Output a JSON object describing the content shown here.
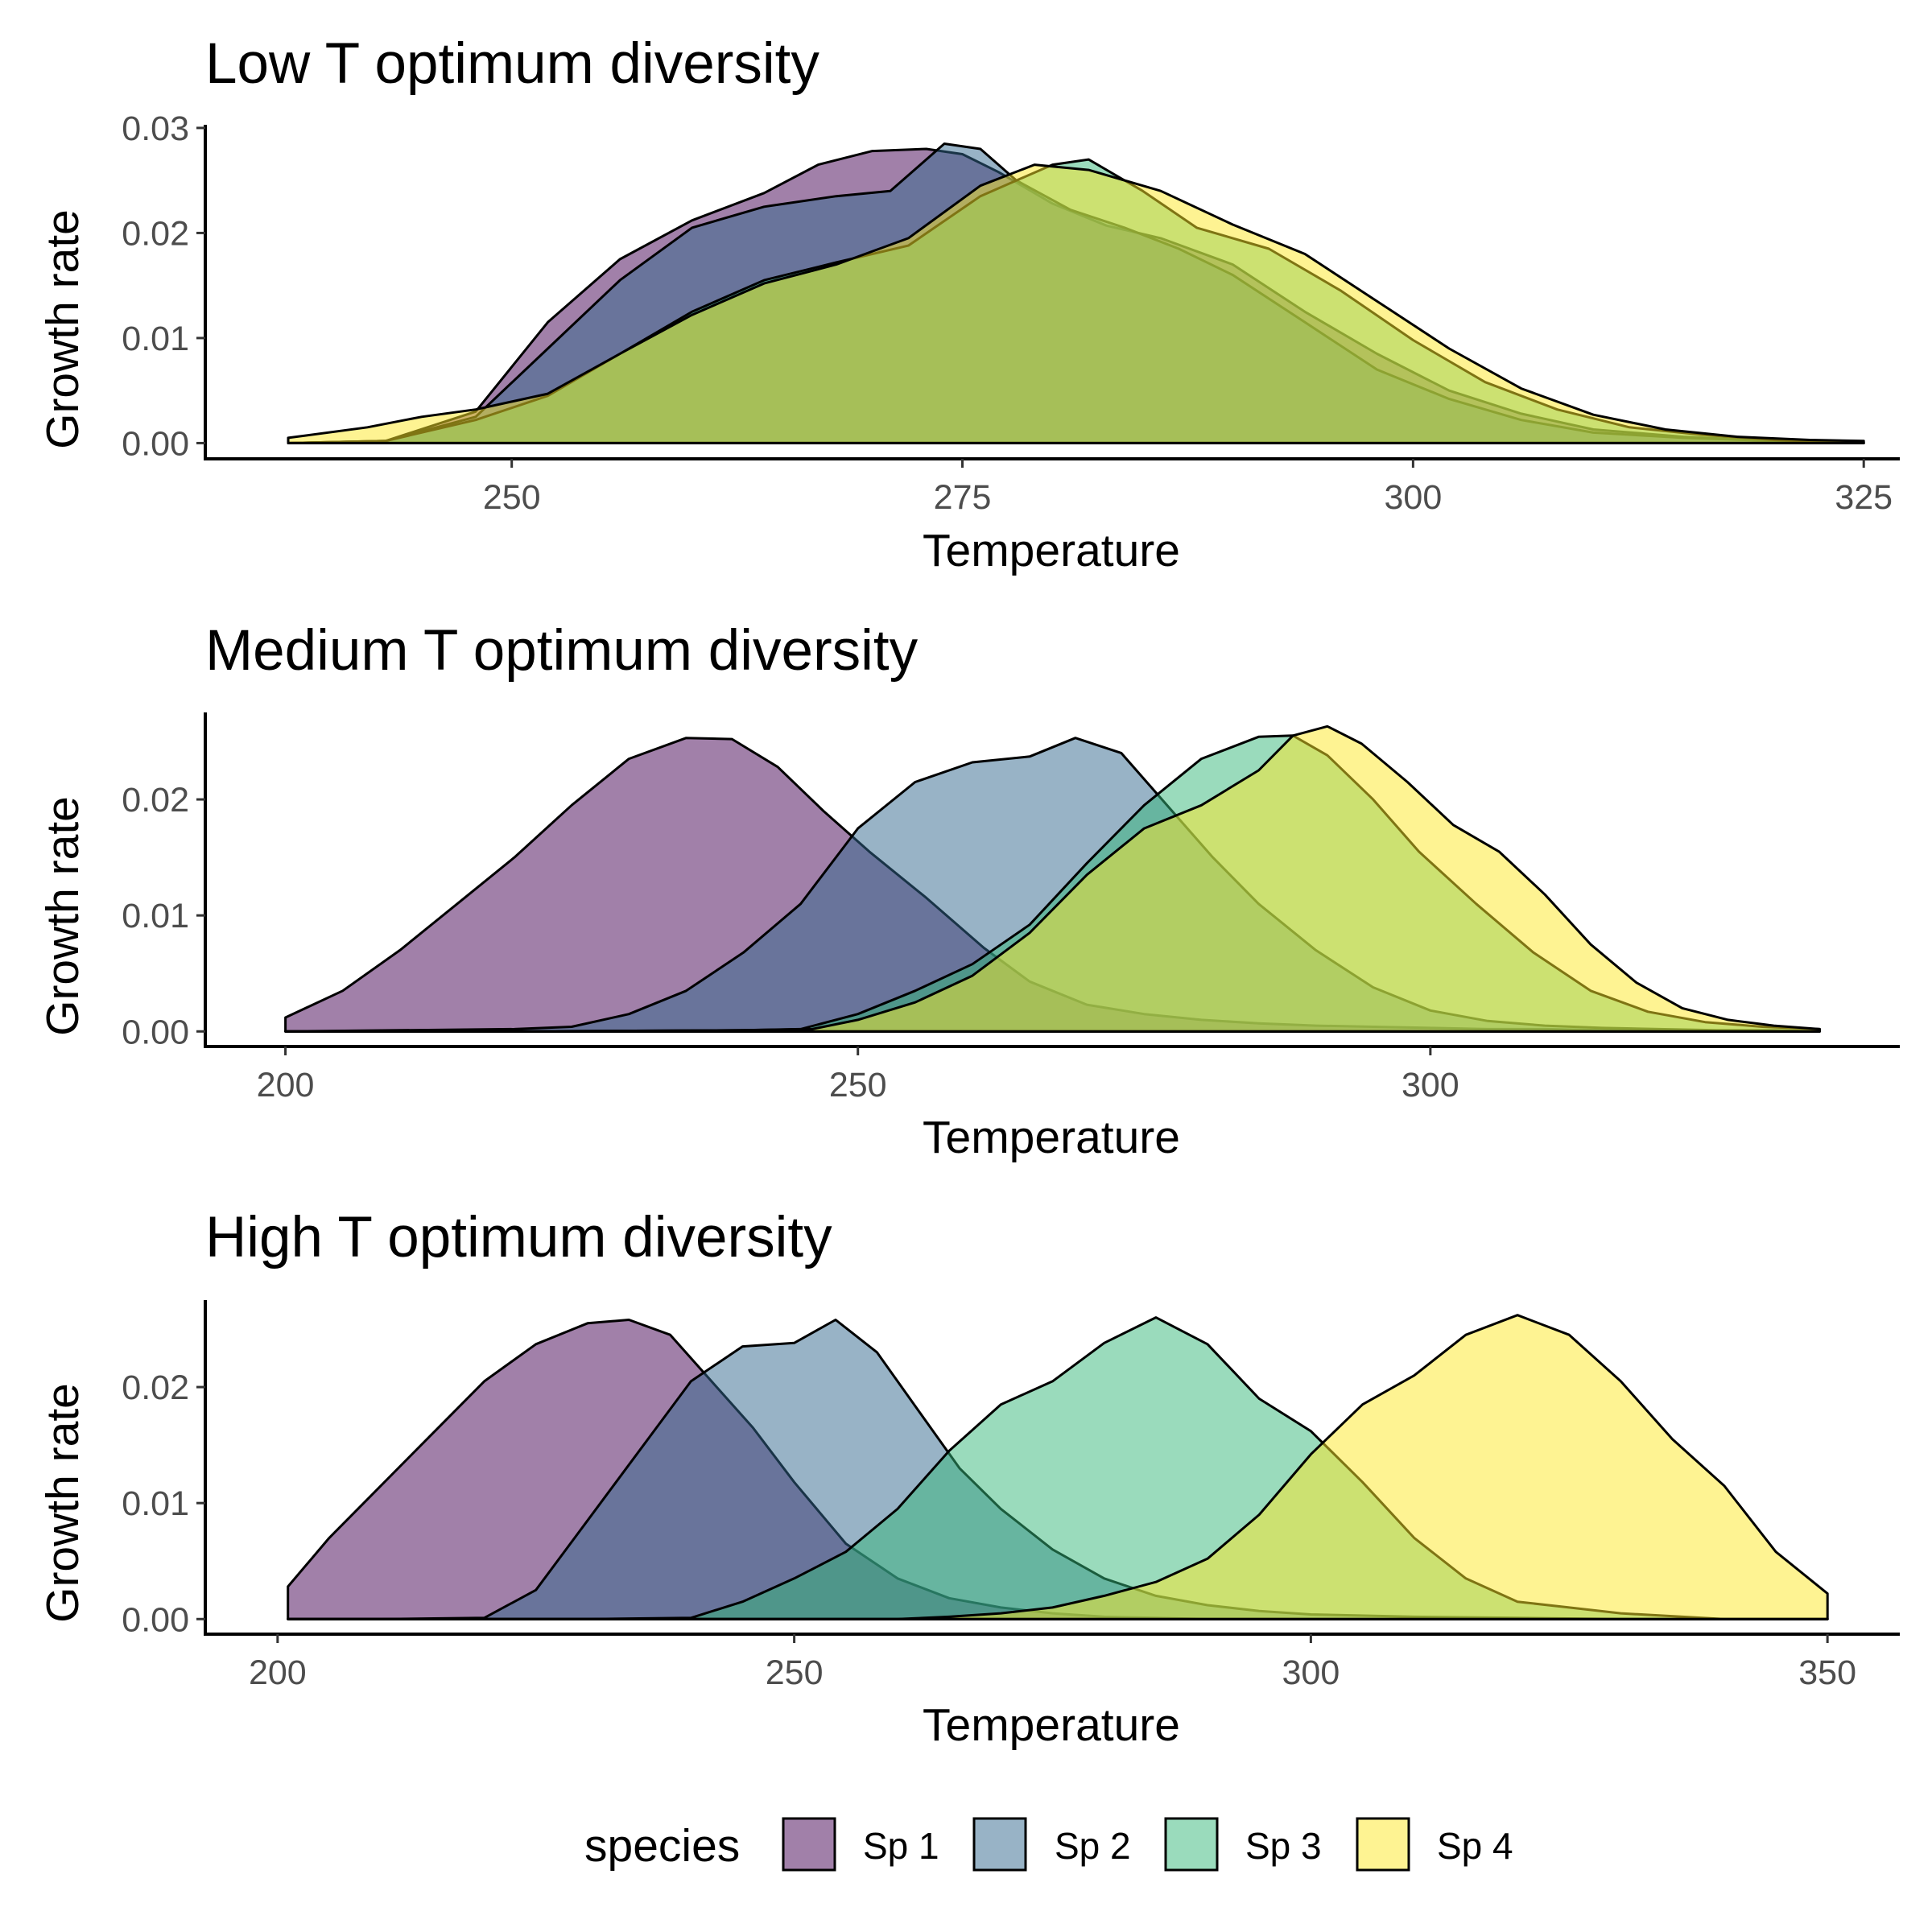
{
  "legend": {
    "title": "species",
    "items": [
      {
        "label": "Sp 1",
        "color": "#440154"
      },
      {
        "label": "Sp 2",
        "color": "#31688E"
      },
      {
        "label": "Sp 3",
        "color": "#35B779"
      },
      {
        "label": "Sp 4",
        "color": "#FDE725"
      }
    ]
  },
  "chart_data": [
    {
      "type": "area",
      "title": "Low T optimum diversity",
      "xlabel": "Temperature",
      "ylabel": "Growth rate",
      "xlim": [
        233,
        327
      ],
      "ylim": [
        -0.0015,
        0.0303
      ],
      "xticks": [
        250,
        275,
        300,
        325
      ],
      "xtick_labels": [
        "250",
        "275",
        "300",
        "325"
      ],
      "yticks": [
        0,
        0.01,
        0.02,
        0.03
      ],
      "ytick_labels": [
        "0.00",
        "0.01",
        "0.02",
        "0.03"
      ],
      "grid": false,
      "series": [
        {
          "name": "Sp 1",
          "x": [
            237.6,
            243,
            248,
            252,
            256,
            260,
            264,
            267,
            270,
            273,
            275,
            277,
            280,
            283,
            286,
            290,
            294,
            298,
            302,
            306,
            310,
            315,
            320,
            325
          ],
          "y": [
            0,
            0.0002,
            0.003,
            0.0115,
            0.0175,
            0.0212,
            0.0238,
            0.0265,
            0.0278,
            0.028,
            0.0275,
            0.0258,
            0.0228,
            0.0207,
            0.0195,
            0.017,
            0.0125,
            0.0085,
            0.005,
            0.0028,
            0.0013,
            0.0006,
            0.0002,
            0
          ]
        },
        {
          "name": "Sp 2",
          "x": [
            237.6,
            243,
            248,
            252,
            256,
            260,
            264,
            268,
            271,
            274,
            276,
            278,
            281,
            284,
            287,
            290,
            294,
            298,
            302,
            306,
            310,
            315,
            320,
            325
          ],
          "y": [
            0,
            0.0002,
            0.0025,
            0.009,
            0.0155,
            0.0205,
            0.0225,
            0.0235,
            0.024,
            0.0285,
            0.028,
            0.025,
            0.0222,
            0.0205,
            0.0185,
            0.016,
            0.0115,
            0.007,
            0.0042,
            0.0022,
            0.001,
            0.0005,
            0.0002,
            0
          ]
        },
        {
          "name": "Sp 3",
          "x": [
            237.6,
            243,
            248,
            252,
            256,
            260,
            264,
            268,
            272,
            276,
            280,
            282,
            285,
            288,
            292,
            296,
            300,
            304,
            308,
            312,
            316,
            320,
            325
          ],
          "y": [
            0,
            0.0002,
            0.0022,
            0.0045,
            0.0085,
            0.0125,
            0.0155,
            0.0172,
            0.0188,
            0.0235,
            0.0265,
            0.027,
            0.024,
            0.0205,
            0.0185,
            0.0145,
            0.0098,
            0.0058,
            0.0032,
            0.0015,
            0.0008,
            0.0003,
            0
          ]
        },
        {
          "name": "Sp 4",
          "x": [
            237.6,
            242,
            245,
            248,
            252,
            256,
            260,
            264,
            268,
            272,
            276,
            279,
            282,
            286,
            290,
            294,
            298,
            302,
            306,
            310,
            314,
            318,
            322,
            325
          ],
          "y": [
            0.0005,
            0.0015,
            0.0025,
            0.0032,
            0.0047,
            0.0085,
            0.0122,
            0.0152,
            0.017,
            0.0195,
            0.0245,
            0.0265,
            0.026,
            0.024,
            0.0208,
            0.018,
            0.0135,
            0.009,
            0.0052,
            0.0027,
            0.0013,
            0.0006,
            0.0003,
            0.0002
          ]
        }
      ]
    },
    {
      "type": "area",
      "title": "Medium T optimum diversity",
      "xlabel": "Temperature",
      "ylabel": "Growth rate",
      "xlim": [
        193,
        341
      ],
      "ylim": [
        -0.0013,
        0.0275
      ],
      "xticks": [
        200,
        250,
        300
      ],
      "xtick_labels": [
        "200",
        "250",
        "300"
      ],
      "yticks": [
        0,
        0.01,
        0.02
      ],
      "ytick_labels": [
        "0.00",
        "0.01",
        "0.02"
      ],
      "grid": false,
      "series": [
        {
          "name": "Sp 1",
          "x": [
            200,
            205,
            210,
            215,
            220,
            225,
            230,
            235,
            239,
            243,
            247,
            251,
            256,
            261,
            265,
            270,
            275,
            280,
            285,
            290,
            295,
            300,
            305,
            310,
            315,
            320,
            325,
            330,
            334
          ],
          "y": [
            0.0012,
            0.0035,
            0.007,
            0.011,
            0.015,
            0.0195,
            0.0235,
            0.0253,
            0.0252,
            0.0228,
            0.019,
            0.0155,
            0.0115,
            0.0072,
            0.0043,
            0.0023,
            0.0015,
            0.001,
            0.0007,
            0.0005,
            0.0004,
            0.0003,
            0.0002,
            0.0002,
            0.0001,
            0.0001,
            0,
            0,
            0
          ]
        },
        {
          "name": "Sp 2",
          "x": [
            200,
            210,
            220,
            225,
            230,
            235,
            240,
            245,
            250,
            255,
            260,
            265,
            269,
            273,
            277,
            281,
            285,
            290,
            295,
            300,
            305,
            310,
            315,
            320,
            325,
            330,
            334
          ],
          "y": [
            0,
            0.0001,
            0.0002,
            0.0004,
            0.0015,
            0.0035,
            0.0068,
            0.011,
            0.0175,
            0.0215,
            0.0232,
            0.0237,
            0.0253,
            0.024,
            0.0195,
            0.015,
            0.011,
            0.007,
            0.0038,
            0.0018,
            0.0009,
            0.0005,
            0.0003,
            0.0002,
            0.0001,
            0.0001,
            0
          ]
        },
        {
          "name": "Sp 3",
          "x": [
            200,
            220,
            240,
            245,
            250,
            255,
            260,
            265,
            270,
            275,
            280,
            285,
            288,
            291,
            295,
            299,
            304,
            309,
            314,
            319,
            324,
            329,
            334
          ],
          "y": [
            0,
            0,
            0.0001,
            0.0002,
            0.0015,
            0.0035,
            0.0058,
            0.0092,
            0.0145,
            0.0195,
            0.0235,
            0.0254,
            0.0255,
            0.0238,
            0.02,
            0.0155,
            0.011,
            0.0068,
            0.0035,
            0.0017,
            0.0008,
            0.0004,
            0.0002
          ]
        },
        {
          "name": "Sp 4",
          "x": [
            200,
            220,
            240,
            246,
            250,
            255,
            260,
            265,
            270,
            275,
            280,
            285,
            288,
            291,
            294,
            298,
            302,
            306,
            310,
            314,
            318,
            322,
            326,
            330,
            334
          ],
          "y": [
            0,
            0,
            0.0001,
            0.0002,
            0.001,
            0.0025,
            0.0048,
            0.0085,
            0.0135,
            0.0175,
            0.0195,
            0.0225,
            0.0255,
            0.0263,
            0.0248,
            0.0215,
            0.0178,
            0.0155,
            0.0118,
            0.0075,
            0.0042,
            0.002,
            0.001,
            0.0005,
            0.0002
          ]
        }
      ]
    },
    {
      "type": "area",
      "title": "High T optimum diversity",
      "xlabel": "Temperature",
      "ylabel": "Growth rate",
      "xlim": [
        193,
        357
      ],
      "ylim": [
        -0.0013,
        0.0275
      ],
      "xticks": [
        200,
        250,
        300,
        350
      ],
      "xtick_labels": [
        "200",
        "250",
        "300",
        "350"
      ],
      "yticks": [
        0,
        0.01,
        0.02
      ],
      "ytick_labels": [
        "0.00",
        "0.01",
        "0.02"
      ],
      "grid": false,
      "series": [
        {
          "name": "Sp 1",
          "x": [
            201,
            205,
            210,
            215,
            220,
            225,
            230,
            234,
            238,
            242,
            246,
            250,
            255,
            260,
            265,
            270,
            275,
            280,
            285,
            290,
            300,
            310,
            320,
            330,
            340,
            350
          ],
          "y": [
            0.0028,
            0.007,
            0.0115,
            0.016,
            0.0205,
            0.0237,
            0.0255,
            0.0258,
            0.0245,
            0.0205,
            0.0165,
            0.0118,
            0.0065,
            0.0035,
            0.0018,
            0.001,
            0.0005,
            0.0002,
            0.0001,
            0,
            0,
            0,
            0,
            0,
            0,
            0
          ]
        },
        {
          "name": "Sp 2",
          "x": [
            201,
            210,
            220,
            225,
            230,
            235,
            240,
            245,
            250,
            254,
            258,
            262,
            266,
            270,
            275,
            280,
            285,
            290,
            295,
            300,
            310,
            320,
            330,
            340,
            350
          ],
          "y": [
            0,
            0,
            0.0001,
            0.0025,
            0.0085,
            0.0145,
            0.0205,
            0.0235,
            0.0238,
            0.0258,
            0.023,
            0.018,
            0.013,
            0.0095,
            0.006,
            0.0035,
            0.002,
            0.0012,
            0.0007,
            0.0004,
            0.0002,
            0.0001,
            0,
            0,
            0
          ]
        },
        {
          "name": "Sp 3",
          "x": [
            201,
            230,
            240,
            245,
            250,
            255,
            260,
            265,
            270,
            275,
            280,
            285,
            290,
            295,
            300,
            305,
            310,
            315,
            320,
            325,
            330,
            340,
            350
          ],
          "y": [
            0,
            0,
            0.0001,
            0.0015,
            0.0035,
            0.0058,
            0.0095,
            0.0145,
            0.0185,
            0.0205,
            0.0238,
            0.026,
            0.0237,
            0.019,
            0.0162,
            0.0118,
            0.007,
            0.0035,
            0.0015,
            0.001,
            0.0005,
            0,
            0
          ]
        },
        {
          "name": "Sp 4",
          "x": [
            201,
            250,
            260,
            265,
            270,
            275,
            280,
            285,
            290,
            295,
            300,
            305,
            310,
            315,
            320,
            325,
            330,
            335,
            340,
            345,
            350
          ],
          "y": [
            0,
            0,
            0,
            0.0002,
            0.0005,
            0.001,
            0.002,
            0.0032,
            0.0052,
            0.009,
            0.0142,
            0.0185,
            0.021,
            0.0245,
            0.0262,
            0.0245,
            0.0205,
            0.0155,
            0.0115,
            0.0058,
            0.0022
          ]
        }
      ]
    }
  ]
}
